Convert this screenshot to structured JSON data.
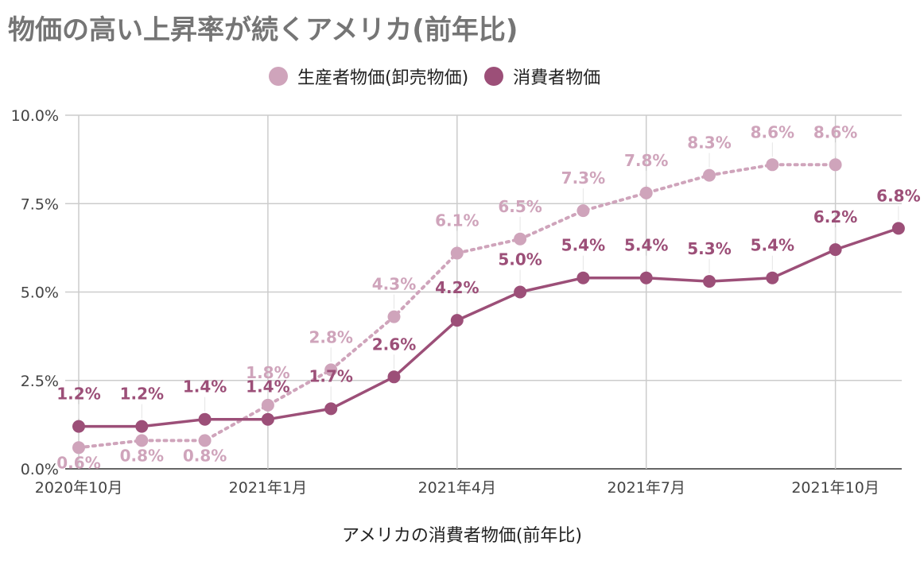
{
  "chart_data": {
    "type": "line",
    "title": "物価の高い上昇率が続くアメリカ(前年比)",
    "xlabel": "アメリカの消費者物価(前年比)",
    "ylabel": "",
    "categories": [
      "2020-10",
      "2020-11",
      "2020-12",
      "2021-01",
      "2021-02",
      "2021-03",
      "2021-04",
      "2021-05",
      "2021-06",
      "2021-07",
      "2021-08",
      "2021-09",
      "2021-10",
      "2021-11"
    ],
    "x_tick_labels": [
      {
        "category": "2020-10",
        "label": "2020年10月"
      },
      {
        "category": "2021-01",
        "label": "2021年1月"
      },
      {
        "category": "2021-04",
        "label": "2021年4月"
      },
      {
        "category": "2021-07",
        "label": "2021年7月"
      },
      {
        "category": "2021-10",
        "label": "2021年10月"
      }
    ],
    "y_ticks": [
      {
        "value": 0,
        "label": "0.0%"
      },
      {
        "value": 2.5,
        "label": "2.5%"
      },
      {
        "value": 5.0,
        "label": "5.0%"
      },
      {
        "value": 7.5,
        "label": "7.5%"
      },
      {
        "value": 10.0,
        "label": "10.0%"
      }
    ],
    "ylim": [
      0,
      10
    ],
    "grid": true,
    "legend_position": "top-center",
    "series": [
      {
        "name": "生産者物価(卸売物価)",
        "color": "#cfa4bb",
        "line_style": "dotted",
        "values": [
          0.6,
          0.8,
          0.8,
          1.8,
          2.8,
          4.3,
          6.1,
          6.5,
          7.3,
          7.8,
          8.3,
          8.6,
          8.6,
          null
        ],
        "labels": [
          "0.6%",
          "0.8%",
          "0.8%",
          "1.8%",
          "2.8%",
          "4.3%",
          "6.1%",
          "6.5%",
          "7.3%",
          "7.8%",
          "8.3%",
          "8.6%",
          "8.6%",
          null
        ]
      },
      {
        "name": "消費者物価",
        "color": "#9c4f78",
        "line_style": "solid",
        "values": [
          1.2,
          1.2,
          1.4,
          1.4,
          1.7,
          2.6,
          4.2,
          5.0,
          5.4,
          5.4,
          5.3,
          5.4,
          6.2,
          6.8
        ],
        "labels": [
          "1.2%",
          "1.2%",
          "1.4%",
          "1.4%",
          "1.7%",
          "2.6%",
          "4.2%",
          "5.0%",
          "5.4%",
          "5.4%",
          "5.3%",
          "5.4%",
          "6.2%",
          "6.8%"
        ]
      }
    ]
  }
}
